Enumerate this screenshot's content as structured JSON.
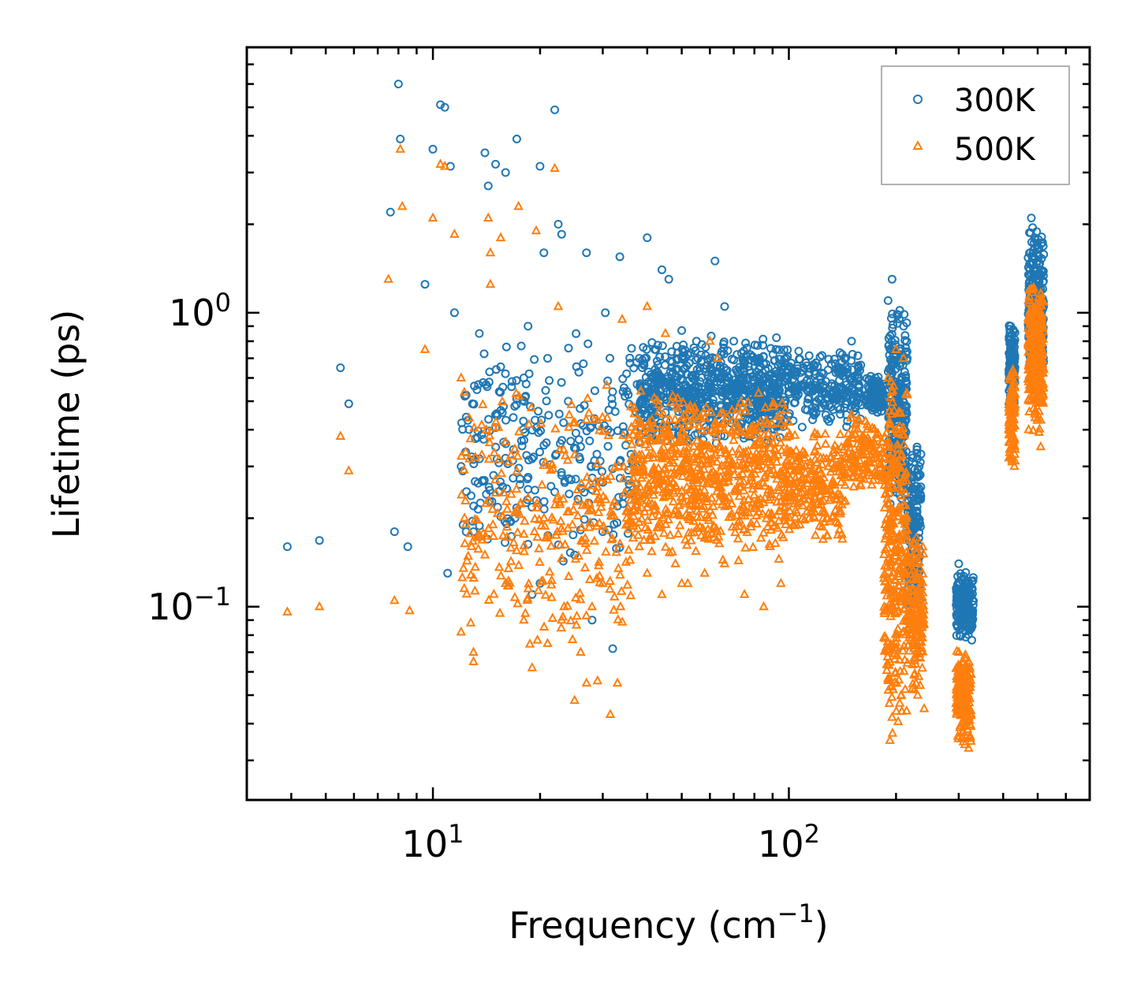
{
  "chart_data": {
    "type": "scatter",
    "title": "",
    "xlabel": "Frequency (cm",
    "xlabel_sup": "−1",
    "xlabel_suffix": ")",
    "ylabel": "Lifetime (ps)",
    "xscale": "log",
    "yscale": "log",
    "xlim": [
      3.0,
      700
    ],
    "ylim": [
      0.022,
      8.0
    ],
    "x_ticks": [
      {
        "base": "10",
        "exp": "1",
        "value": 10
      },
      {
        "base": "10",
        "exp": "2",
        "value": 100
      }
    ],
    "y_ticks": [
      {
        "base": "10",
        "exp": "0",
        "value": 1
      },
      {
        "base": "10",
        "exp": "−1",
        "value": 0.1
      }
    ],
    "legend_position": "top-right",
    "series": [
      {
        "name": "300K",
        "marker": "circle",
        "color": "#1f77b4",
        "points": [
          [
            3.9,
            0.16
          ],
          [
            4.8,
            0.168
          ],
          [
            5.5,
            0.65
          ],
          [
            5.8,
            0.49
          ],
          [
            7.6,
            2.2
          ],
          [
            7.8,
            0.18
          ],
          [
            8.0,
            6.0
          ],
          [
            8.1,
            3.9
          ],
          [
            8.5,
            0.16
          ],
          [
            9.5,
            1.25
          ],
          [
            10.0,
            3.6
          ],
          [
            10.5,
            5.1
          ],
          [
            10.8,
            5.0
          ],
          [
            11.2,
            3.15
          ],
          [
            11.5,
            1.0
          ],
          [
            12.3,
            0.52
          ],
          [
            13.5,
            0.85
          ],
          [
            14.0,
            3.5
          ],
          [
            14.3,
            2.7
          ],
          [
            15.0,
            3.2
          ],
          [
            16.0,
            3.0
          ],
          [
            17.2,
            3.9
          ],
          [
            18.5,
            0.9
          ],
          [
            20.0,
            3.15
          ],
          [
            20.5,
            1.6
          ],
          [
            22.0,
            4.9
          ],
          [
            22.5,
            2.0
          ],
          [
            23.0,
            1.85
          ],
          [
            27.0,
            1.6
          ],
          [
            30.5,
            1.0
          ],
          [
            33.5,
            1.55
          ],
          [
            40.0,
            1.8
          ],
          [
            44.0,
            1.4
          ],
          [
            46.0,
            1.3
          ],
          [
            50.0,
            0.87
          ],
          [
            55.0,
            0.8
          ],
          [
            62.0,
            1.5
          ],
          [
            66.0,
            1.05
          ],
          [
            12.0,
            0.3
          ],
          [
            15.0,
            0.45
          ],
          [
            18.0,
            0.6
          ],
          [
            21.0,
            0.7
          ],
          [
            24.0,
            0.5
          ],
          [
            26.0,
            0.35
          ],
          [
            28.0,
            0.25
          ],
          [
            31.0,
            0.4
          ],
          [
            33.0,
            0.22
          ],
          [
            36.0,
            0.33
          ],
          [
            20.0,
            0.12
          ],
          [
            25.0,
            0.15
          ],
          [
            30.0,
            0.18
          ],
          [
            32.0,
            0.072
          ],
          [
            28.0,
            0.09
          ],
          [
            11.0,
            0.13
          ],
          [
            13.0,
            0.18
          ],
          [
            17.0,
            0.2
          ],
          [
            19.0,
            0.11
          ],
          [
            23.0,
            0.28
          ],
          [
            35.0,
            0.62
          ],
          [
            38.0,
            0.7
          ],
          [
            42.0,
            0.75
          ],
          [
            47.0,
            0.68
          ],
          [
            52.0,
            0.72
          ],
          [
            57.0,
            0.78
          ],
          [
            60.0,
            0.7
          ],
          [
            70.0,
            0.8
          ],
          [
            78.0,
            0.72
          ],
          [
            85.0,
            0.67
          ],
          [
            95.0,
            0.6
          ],
          [
            110.0,
            0.65
          ],
          [
            125.0,
            0.62
          ],
          [
            140.0,
            0.55
          ],
          [
            150.0,
            0.8
          ],
          [
            175.0,
            0.6
          ],
          [
            190.0,
            1.1
          ],
          [
            195.0,
            1.3
          ],
          [
            210.0,
            0.9
          ],
          [
            215.0,
            0.7
          ],
          [
            225.0,
            0.15
          ],
          [
            235.0,
            0.1
          ],
          [
            300.0,
            0.14
          ],
          [
            310.0,
            0.1
          ],
          [
            320.0,
            0.085
          ],
          [
            420.0,
            0.9
          ],
          [
            430.0,
            0.7
          ],
          [
            480.0,
            2.1
          ],
          [
            490.0,
            1.8
          ],
          [
            500.0,
            1.5
          ],
          [
            510.0,
            1.2
          ]
        ],
        "bands": [
          {
            "x": [
              38,
              100
            ],
            "y": [
              0.35,
              0.85
            ],
            "n": 700
          },
          {
            "x": [
              100,
              160
            ],
            "y": [
              0.4,
              0.75
            ],
            "n": 220
          },
          {
            "x": [
              165,
              185
            ],
            "y": [
              0.45,
              0.62
            ],
            "n": 120
          },
          {
            "x": [
              190,
              215
            ],
            "y": [
              0.2,
              1.1
            ],
            "n": 260
          },
          {
            "x": [
              215,
              235
            ],
            "y": [
              0.09,
              0.4
            ],
            "n": 160
          },
          {
            "x": [
              295,
              330
            ],
            "y": [
              0.075,
              0.135
            ],
            "n": 170
          },
          {
            "x": [
              415,
              432
            ],
            "y": [
              0.45,
              1.0
            ],
            "n": 100
          },
          {
            "x": [
              470,
              520
            ],
            "y": [
              0.55,
              2.0
            ],
            "n": 260
          },
          {
            "x": [
              12,
              38
            ],
            "y": [
              0.14,
              0.9
            ],
            "n": 260
          }
        ]
      },
      {
        "name": "500K",
        "marker": "triangle",
        "color": "#ff7f0e",
        "points": [
          [
            3.9,
            0.096
          ],
          [
            4.8,
            0.1
          ],
          [
            5.5,
            0.38
          ],
          [
            5.8,
            0.29
          ],
          [
            7.5,
            1.3
          ],
          [
            7.8,
            0.105
          ],
          [
            8.1,
            3.6
          ],
          [
            8.2,
            2.3
          ],
          [
            8.6,
            0.097
          ],
          [
            9.5,
            0.75
          ],
          [
            10.0,
            2.1
          ],
          [
            10.5,
            3.2
          ],
          [
            10.8,
            3.15
          ],
          [
            11.5,
            1.85
          ],
          [
            12.0,
            0.6
          ],
          [
            13.0,
            0.065
          ],
          [
            14.3,
            2.1
          ],
          [
            14.5,
            1.6
          ],
          [
            14.5,
            1.25
          ],
          [
            15.5,
            1.8
          ],
          [
            17.4,
            2.3
          ],
          [
            19.5,
            1.9
          ],
          [
            22.0,
            3.1
          ],
          [
            22.5,
            1.05
          ],
          [
            25.0,
            0.048
          ],
          [
            27.0,
            0.055
          ],
          [
            29.0,
            0.056
          ],
          [
            31.5,
            0.043
          ],
          [
            33.0,
            0.055
          ],
          [
            34.0,
            0.95
          ],
          [
            40.0,
            1.05
          ],
          [
            45.0,
            0.85
          ],
          [
            48.0,
            0.14
          ],
          [
            50.0,
            0.12
          ],
          [
            60.0,
            0.8
          ],
          [
            63.0,
            0.7
          ],
          [
            12.0,
            0.082
          ],
          [
            13.0,
            0.07
          ],
          [
            14.0,
            0.15
          ],
          [
            16.0,
            0.12
          ],
          [
            18.0,
            0.09
          ],
          [
            19.0,
            0.062
          ],
          [
            21.0,
            0.075
          ],
          [
            23.0,
            0.09
          ],
          [
            26.0,
            0.07
          ],
          [
            28.0,
            0.1
          ],
          [
            30.0,
            0.12
          ],
          [
            35.0,
            0.2
          ],
          [
            38.0,
            0.16
          ],
          [
            40.0,
            0.13
          ],
          [
            44.0,
            0.11
          ],
          [
            52.0,
            0.12
          ],
          [
            58.0,
            0.13
          ],
          [
            66.0,
            0.14
          ],
          [
            75.0,
            0.11
          ],
          [
            85.0,
            0.1
          ],
          [
            95.0,
            0.12
          ],
          [
            115.0,
            0.21
          ],
          [
            130.0,
            0.23
          ],
          [
            150.0,
            0.45
          ],
          [
            175.0,
            0.28
          ],
          [
            190.0,
            0.6
          ],
          [
            200.0,
            0.75
          ],
          [
            205.0,
            0.3
          ],
          [
            210.0,
            0.7
          ],
          [
            220.0,
            0.08
          ],
          [
            230.0,
            0.05
          ],
          [
            240.0,
            0.045
          ],
          [
            300.0,
            0.07
          ],
          [
            310.0,
            0.04
          ],
          [
            320.0,
            0.033
          ],
          [
            420.0,
            0.4
          ],
          [
            430.0,
            0.3
          ],
          [
            485.0,
            1.2
          ],
          [
            495.0,
            0.9
          ],
          [
            505.0,
            0.55
          ],
          [
            510.0,
            0.35
          ]
        ],
        "bands": [
          {
            "x": [
              36,
              100
            ],
            "y": [
              0.14,
              0.55
            ],
            "n": 750
          },
          {
            "x": [
              100,
              145
            ],
            "y": [
              0.16,
              0.42
            ],
            "n": 220
          },
          {
            "x": [
              145,
              185
            ],
            "y": [
              0.24,
              0.46
            ],
            "n": 140
          },
          {
            "x": [
              185,
              215
            ],
            "y": [
              0.03,
              0.7
            ],
            "n": 320
          },
          {
            "x": [
              215,
              240
            ],
            "y": [
              0.05,
              0.2
            ],
            "n": 160
          },
          {
            "x": [
              295,
              325
            ],
            "y": [
              0.033,
              0.075
            ],
            "n": 180
          },
          {
            "x": [
              415,
              432
            ],
            "y": [
              0.3,
              0.65
            ],
            "n": 100
          },
          {
            "x": [
              470,
              520
            ],
            "y": [
              0.38,
              1.3
            ],
            "n": 280
          },
          {
            "x": [
              12,
              36
            ],
            "y": [
              0.07,
              0.6
            ],
            "n": 300
          }
        ]
      }
    ]
  }
}
